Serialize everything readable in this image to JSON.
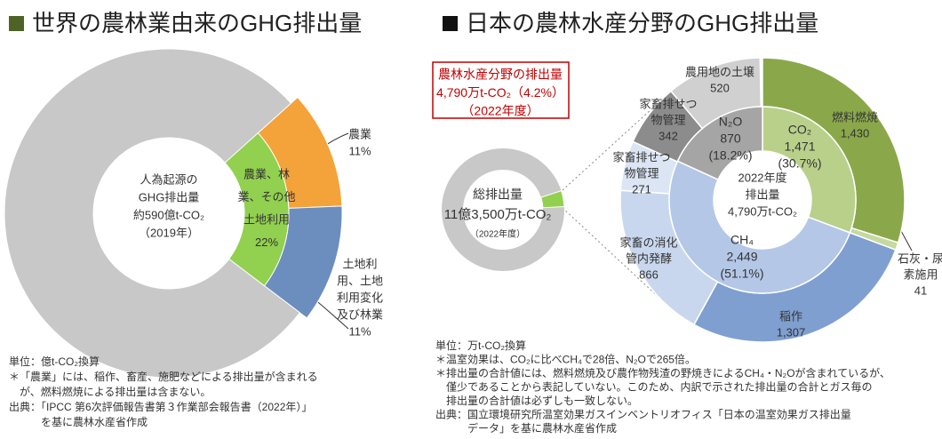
{
  "chart_data": [
    {
      "type": "pie",
      "title": "世界の農林業由来のGHG排出量",
      "center_text": [
        "人為起源の",
        "GHG排出量",
        "約590億t-CO₂",
        "（2019年）"
      ],
      "outer": {
        "categories": [
          [
            "農業"
          ],
          [
            "土地利",
            "用、土地",
            "利用変化",
            "及び林業"
          ],
          null
        ],
        "values": [
          11,
          11,
          78
        ],
        "value_labels": [
          "11%",
          "11%",
          null
        ],
        "colors": [
          "#f4a23a",
          "#6c8ebf",
          "#c8c8c8"
        ]
      },
      "inner": {
        "categories": [
          [
            "農業、林",
            "業、その他",
            "土地利用"
          ]
        ],
        "values": [
          22
        ],
        "value_labels": [
          "22%"
        ],
        "colors": [
          "#92d050"
        ]
      },
      "notes": [
        "単位：億t-CO₂換算",
        "＊「農業」には、稲作、畜産、施肥などによる排出量が含まれる",
        "　が、燃料燃焼による排出量は含まない。",
        "出典：「IPCC 第6次評価報告書第３作業部会報告書（2022年）」",
        "　　　を基に農林水産省作成"
      ]
    },
    {
      "type": "donut",
      "title": "日本の農林水産分野のGHG排出量",
      "callout": [
        "農林水産分野の排出量",
        "4,790万t-CO₂（4.2%）",
        "（2022年度）"
      ],
      "total_text": [
        "総排出量",
        "11億3,500万t-CO₂",
        "（2022年度）"
      ],
      "sector_share": 4.2,
      "share_color": "#92d050",
      "center_text": [
        "2022年度",
        "排出量",
        "4,790万t-CO₂"
      ],
      "inner": {
        "categories": [
          "CO₂",
          "CH₄",
          "N₂O"
        ],
        "values": [
          1471,
          2449,
          870
        ],
        "value_labels": [
          "1,471",
          "2,449",
          "870"
        ],
        "shares": [
          "(30.7%)",
          "(51.1%)",
          "(18.2%)"
        ],
        "colors": [
          "#b9d08b",
          "#b4c7e7",
          "#a5a5a5"
        ]
      },
      "outer": {
        "categories": [
          [
            "燃料燃焼"
          ],
          [
            "石灰・尿",
            "素施用"
          ],
          [
            "稲作"
          ],
          [
            "家畜の消化",
            "管内発酵"
          ],
          [
            "家畜排せつ",
            "物管理"
          ],
          [
            "家畜排せつ",
            "物管理"
          ],
          [
            "農用地の土壌"
          ]
        ],
        "values": [
          1430,
          41,
          1307,
          866,
          271,
          342,
          520
        ],
        "value_labels": [
          "1,430",
          "41",
          "1,307",
          "866",
          "271",
          "342",
          "520"
        ],
        "colors": [
          "#8aa84a",
          "#c5d9a0",
          "#7f9fd0",
          "#c9d7ee",
          "#dce5f4",
          "#8c8c8c",
          "#d0d0d0"
        ]
      },
      "notes": [
        "単位：万t-CO₂換算",
        "＊温室効果は、CO₂に比べCH₄で28倍、N₂Oで265倍。",
        "＊排出量の合計値には、燃料燃焼及び農作物残渣の野焼きによるCH₄・N₂Oが含まれているが、",
        "　僅少であることから表記していない。このため、内訳で示された排出量の合計とガス毎の",
        "　排出量の合計値は必ずしも一致しない。",
        "出典：国立環境研究所温室効果ガスインベントリオフィス「日本の温室効果ガス排出量",
        "　　　データ」を基に農林水産省作成"
      ]
    }
  ]
}
